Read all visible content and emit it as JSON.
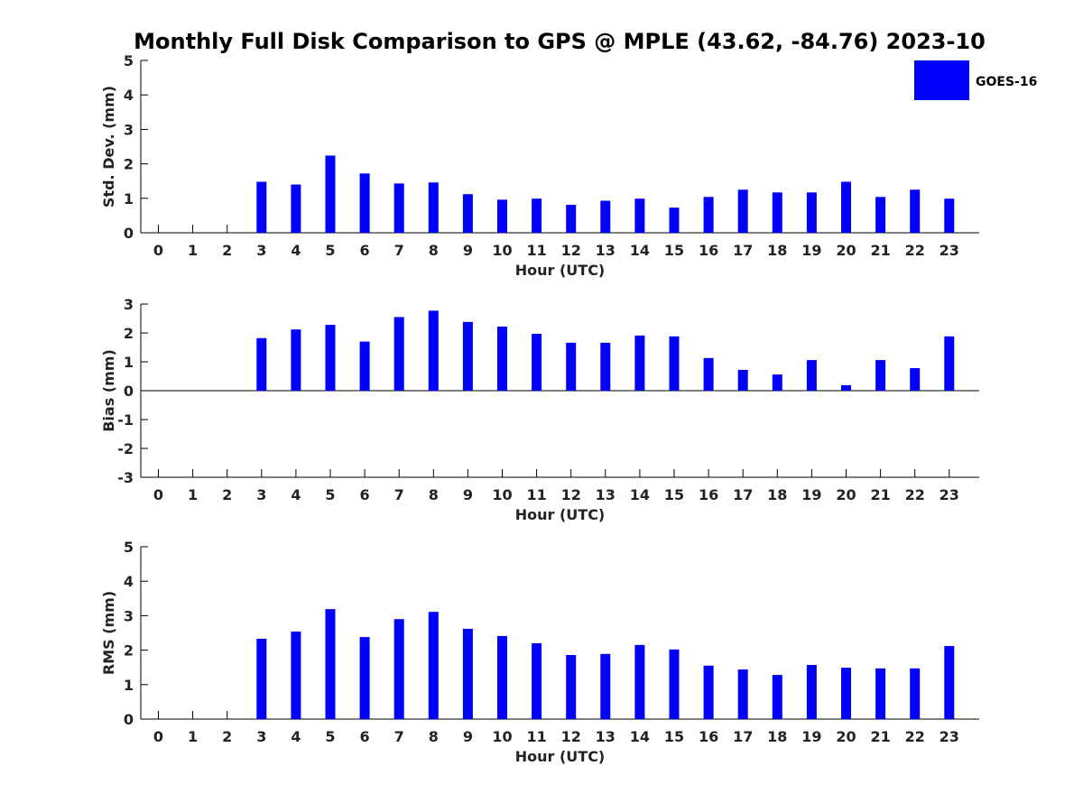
{
  "figure": {
    "title": "Monthly Full Disk Comparison to GPS @ MPLE (43.62, -84.76) 2023-10",
    "legend": {
      "label": "GOES-16",
      "color": "#0000ff"
    }
  },
  "chart_data": [
    {
      "type": "bar",
      "xlabel": "Hour (UTC)",
      "ylabel": "Std. Dev. (mm)",
      "ylim": [
        0,
        5
      ],
      "yticks": [
        0,
        1,
        2,
        3,
        4,
        5
      ],
      "categories": [
        "0",
        "1",
        "2",
        "3",
        "4",
        "5",
        "6",
        "7",
        "8",
        "9",
        "10",
        "11",
        "12",
        "13",
        "14",
        "15",
        "16",
        "17",
        "18",
        "19",
        "20",
        "21",
        "22",
        "23"
      ],
      "series": [
        {
          "name": "GOES-16",
          "color": "#0000ff",
          "values": [
            null,
            null,
            null,
            1.48,
            1.4,
            2.24,
            1.72,
            1.43,
            1.46,
            1.12,
            0.96,
            0.99,
            0.81,
            0.93,
            0.99,
            0.73,
            1.04,
            1.25,
            1.17,
            1.17,
            1.48,
            1.04,
            1.25,
            0.99
          ]
        }
      ]
    },
    {
      "type": "bar",
      "xlabel": "Hour (UTC)",
      "ylabel": "Bias (mm)",
      "ylim": [
        -3,
        3
      ],
      "yticks": [
        -3,
        -2,
        -1,
        0,
        1,
        2,
        3
      ],
      "categories": [
        "0",
        "1",
        "2",
        "3",
        "4",
        "5",
        "6",
        "7",
        "8",
        "9",
        "10",
        "11",
        "12",
        "13",
        "14",
        "15",
        "16",
        "17",
        "18",
        "19",
        "20",
        "21",
        "22",
        "23"
      ],
      "series": [
        {
          "name": "GOES-16",
          "color": "#0000ff",
          "values": [
            null,
            null,
            null,
            1.82,
            2.12,
            2.28,
            1.7,
            2.55,
            2.77,
            2.38,
            2.22,
            1.97,
            1.66,
            1.66,
            1.91,
            1.88,
            1.13,
            0.72,
            0.56,
            1.06,
            0.19,
            1.06,
            0.78,
            1.88
          ]
        }
      ]
    },
    {
      "type": "bar",
      "xlabel": "Hour (UTC)",
      "ylabel": "RMS (mm)",
      "ylim": [
        0,
        5
      ],
      "yticks": [
        0,
        1,
        2,
        3,
        4,
        5
      ],
      "categories": [
        "0",
        "1",
        "2",
        "3",
        "4",
        "5",
        "6",
        "7",
        "8",
        "9",
        "10",
        "11",
        "12",
        "13",
        "14",
        "15",
        "16",
        "17",
        "18",
        "19",
        "20",
        "21",
        "22",
        "23"
      ],
      "series": [
        {
          "name": "GOES-16",
          "color": "#0000ff",
          "values": [
            null,
            null,
            null,
            2.33,
            2.54,
            3.19,
            2.38,
            2.9,
            3.11,
            2.62,
            2.41,
            2.2,
            1.86,
            1.89,
            2.15,
            2.02,
            1.55,
            1.44,
            1.28,
            1.57,
            1.49,
            1.47,
            1.47,
            2.12
          ]
        }
      ]
    }
  ]
}
